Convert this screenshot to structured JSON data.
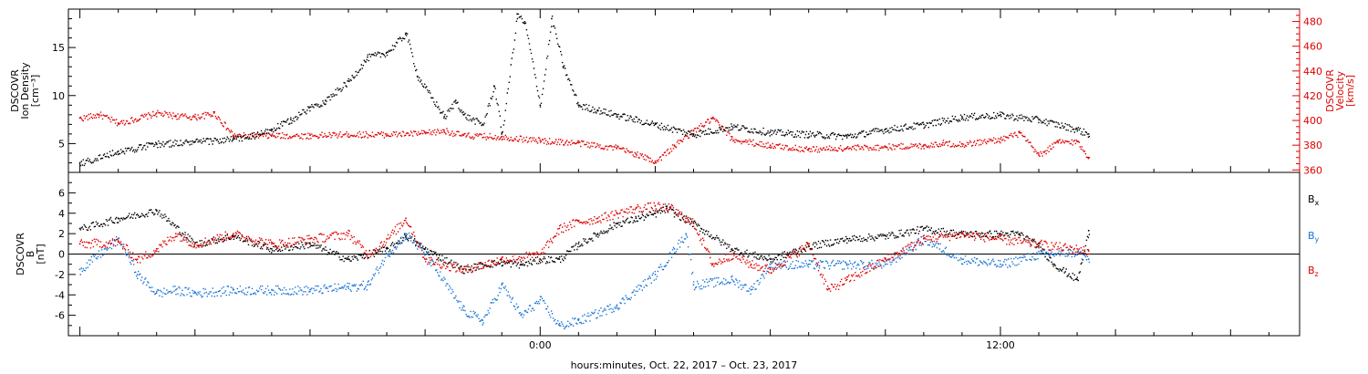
{
  "chart_data": [
    {
      "type": "scatter",
      "panel": "top",
      "ylabel_left": [
        "DSCOVR",
        "Ion Density",
        "[cm⁻³]"
      ],
      "ylabel_right": [
        "DSCOVR",
        "Velocity",
        "[km/s]"
      ],
      "ylim_left": [
        2,
        19
      ],
      "ylim_right": [
        358,
        490
      ],
      "yticks_left": [
        "5",
        "10",
        "15"
      ],
      "yticks_right": [
        "360",
        "380",
        "400",
        "420",
        "440",
        "460",
        "480"
      ],
      "colors": {
        "density": "#000000",
        "velocity": "#e00000"
      },
      "series": [
        {
          "name": "Ion Density",
          "color": "#000000",
          "axis": "left",
          "x": [
            -12.0,
            -11.0,
            -10.0,
            -9.0,
            -8.0,
            -7.5,
            -7.0,
            -6.5,
            -6.0,
            -5.6,
            -5.0,
            -4.5,
            -4.0,
            -3.5,
            -3.2,
            -2.5,
            -2.2,
            -2.0,
            -1.5,
            -1.2,
            -1.0,
            -0.6,
            -0.4,
            0.0,
            0.3,
            0.6,
            1.0,
            1.5,
            2.0,
            3.0,
            4.0,
            5.0,
            6.0,
            7.0,
            8.0,
            9.0,
            10.0,
            11.0,
            12.0,
            13.0,
            14.0,
            14.3
          ],
          "y": [
            3.0,
            4.2,
            5.0,
            5.2,
            5.5,
            5.8,
            6.5,
            7.5,
            8.8,
            9.5,
            11.5,
            14.0,
            14.5,
            16.5,
            12.0,
            7.8,
            9.5,
            8.0,
            7.0,
            11.0,
            6.0,
            18.5,
            17.5,
            9.0,
            18.0,
            13.0,
            9.0,
            8.5,
            8.0,
            7.0,
            6.0,
            6.8,
            6.2,
            6.0,
            5.8,
            6.5,
            7.0,
            7.8,
            8.0,
            7.5,
            6.5,
            6.0
          ]
        },
        {
          "name": "Velocity",
          "color": "#e00000",
          "axis": "right",
          "x": [
            -12.0,
            -11.5,
            -11.0,
            -10.0,
            -9.5,
            -9.0,
            -8.5,
            -8.0,
            -7.0,
            -6.0,
            -5.0,
            -4.0,
            -3.0,
            -2.5,
            -2.0,
            -1.0,
            0.0,
            1.0,
            2.0,
            2.5,
            3.0,
            3.5,
            4.0,
            4.5,
            5.0,
            6.0,
            7.0,
            8.0,
            9.0,
            10.0,
            10.5,
            11.0,
            12.0,
            12.5,
            13.0,
            13.5,
            14.0,
            14.3
          ],
          "y": [
            402,
            405,
            398,
            406,
            404,
            403,
            406,
            388,
            388,
            388,
            389,
            389,
            390,
            392,
            388,
            387,
            384,
            382,
            378,
            373,
            367,
            380,
            392,
            402,
            385,
            380,
            377,
            378,
            379,
            380,
            382,
            381,
            385,
            390,
            372,
            383,
            383,
            370
          ]
        }
      ]
    },
    {
      "type": "scatter",
      "panel": "bottom",
      "ylabel": [
        "DSCOVR",
        "B",
        "[nT]"
      ],
      "ylim": [
        -8,
        8
      ],
      "yticks": [
        "-6",
        "-4",
        "-2",
        "0",
        "2",
        "4",
        "6"
      ],
      "xlabel": "hours:minutes, Oct. 22, 2017 – Oct. 23, 2017",
      "xlim": [
        -12.3,
        19.8
      ],
      "xticks": [
        {
          "value": 0,
          "label": "0:00"
        },
        {
          "value": 12,
          "label": "12:00"
        }
      ],
      "legend": [
        {
          "label": "B",
          "sub": "x",
          "color": "#000000"
        },
        {
          "label": "B",
          "sub": "y",
          "color": "#1a74d6"
        },
        {
          "label": "B",
          "sub": "z",
          "color": "#e00000"
        }
      ],
      "series": [
        {
          "name": "Bx",
          "color": "#000000",
          "x": [
            -12.0,
            -11.0,
            -10.0,
            -9.0,
            -8.0,
            -7.0,
            -6.0,
            -5.0,
            -4.0,
            -3.5,
            -3.0,
            -2.0,
            -1.5,
            -1.0,
            -0.5,
            0.0,
            0.5,
            1.0,
            1.5,
            2.0,
            2.5,
            3.0,
            3.3,
            3.5,
            4.0,
            5.0,
            6.0,
            7.0,
            8.0,
            9.0,
            10.0,
            11.0,
            12.0,
            12.5,
            13.0,
            13.4,
            14.0,
            14.3
          ],
          "y": [
            2.5,
            3.5,
            4.3,
            1.0,
            1.8,
            0.5,
            1.0,
            -0.5,
            0.5,
            1.8,
            0.5,
            -1.5,
            -1.0,
            -0.8,
            -1.0,
            -0.5,
            -0.5,
            1.0,
            2.0,
            3.0,
            3.5,
            4.0,
            4.5,
            4.0,
            3.0,
            0.5,
            -0.5,
            0.8,
            1.5,
            1.8,
            2.5,
            2.0,
            2.0,
            2.0,
            0.8,
            -1.0,
            -2.5,
            2.3
          ]
        },
        {
          "name": "By",
          "color": "#1a74d6",
          "x": [
            -12.0,
            -11.0,
            -10.5,
            -10.0,
            -9.5,
            -9.0,
            -8.0,
            -7.0,
            -6.0,
            -5.0,
            -4.5,
            -4.0,
            -3.5,
            -3.0,
            -2.0,
            -1.5,
            -1.0,
            -0.5,
            0.0,
            0.5,
            1.0,
            2.0,
            3.0,
            3.5,
            3.8,
            4.0,
            5.0,
            5.5,
            6.0,
            7.0,
            8.0,
            9.0,
            10.0,
            11.0,
            12.0,
            13.0,
            14.0,
            14.3
          ],
          "y": [
            -1.5,
            1.5,
            -2.0,
            -3.8,
            -3.5,
            -3.8,
            -3.5,
            -3.5,
            -3.5,
            -3.2,
            -3.0,
            0.0,
            2.0,
            0.0,
            -5.5,
            -6.5,
            -3.0,
            -6.0,
            -4.5,
            -7.0,
            -6.5,
            -5.0,
            -2.0,
            0.5,
            2.0,
            -3.0,
            -2.5,
            -3.5,
            -1.0,
            -1.0,
            -1.0,
            -1.0,
            1.5,
            -0.5,
            -1.0,
            0.0,
            0.2,
            -0.5
          ]
        },
        {
          "name": "Bz",
          "color": "#e00000",
          "x": [
            -12.0,
            -11.0,
            -10.5,
            -10.0,
            -9.5,
            -9.0,
            -8.0,
            -7.0,
            -6.0,
            -5.0,
            -4.5,
            -4.0,
            -3.5,
            -3.0,
            -2.0,
            -1.0,
            0.0,
            0.5,
            1.0,
            1.5,
            2.0,
            2.5,
            3.0,
            3.4,
            3.8,
            4.0,
            4.5,
            5.0,
            5.5,
            6.0,
            7.0,
            7.5,
            8.0,
            9.0,
            10.0,
            11.0,
            12.0,
            13.0,
            14.0,
            14.3
          ],
          "y": [
            1.0,
            1.2,
            -0.5,
            0.5,
            2.0,
            1.0,
            2.0,
            1.0,
            1.5,
            2.0,
            0.0,
            1.5,
            3.5,
            -0.5,
            -1.5,
            -0.5,
            0.0,
            2.5,
            3.2,
            3.5,
            4.0,
            4.5,
            4.7,
            4.5,
            3.5,
            3.0,
            -1.0,
            0.0,
            -1.0,
            -1.5,
            1.0,
            -3.5,
            -2.5,
            -0.5,
            1.5,
            2.0,
            1.5,
            1.0,
            0.5,
            0.3
          ]
        }
      ]
    }
  ]
}
